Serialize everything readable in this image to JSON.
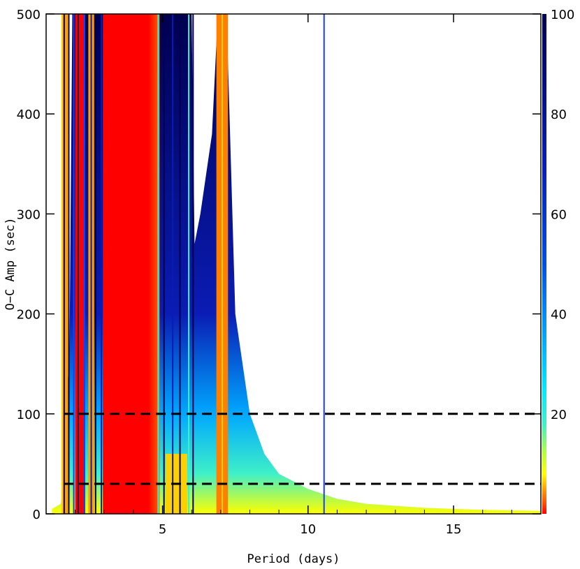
{
  "chart_data": {
    "type": "heatmap",
    "title": "",
    "xlabel": "Period (days)",
    "ylabel": "O−C Amp (sec)",
    "xlim": [
      1,
      18
    ],
    "ylim": [
      0,
      500
    ],
    "xticks": [
      5,
      10,
      15
    ],
    "yticks": [
      0,
      100,
      200,
      300,
      400,
      500
    ],
    "colorbar": {
      "range": [
        0,
        100
      ],
      "ticks": [
        20,
        40,
        60,
        80,
        100
      ],
      "stops": [
        {
          "v": 0,
          "color": "#ff0000"
        },
        {
          "v": 2,
          "color": "#ff4a00"
        },
        {
          "v": 5,
          "color": "#ffa000"
        },
        {
          "v": 8,
          "color": "#ffff00"
        },
        {
          "v": 12,
          "color": "#b8ff3a"
        },
        {
          "v": 18,
          "color": "#3ff0c8"
        },
        {
          "v": 25,
          "color": "#00e8ff"
        },
        {
          "v": 35,
          "color": "#00a8ff"
        },
        {
          "v": 50,
          "color": "#0050e0"
        },
        {
          "v": 70,
          "color": "#0a1cb4"
        },
        {
          "v": 100,
          "color": "#000050"
        }
      ]
    },
    "reference_lines": [
      {
        "y": 100,
        "style": "dashed"
      },
      {
        "y": 30,
        "style": "dashed"
      }
    ],
    "detection_limit_curve": [
      [
        1.2,
        5
      ],
      [
        1.5,
        10
      ],
      [
        1.6,
        30
      ],
      [
        1.65,
        110
      ],
      [
        1.8,
        150
      ],
      [
        1.9,
        500
      ],
      [
        6.0,
        500
      ],
      [
        6.1,
        270
      ],
      [
        6.3,
        300
      ],
      [
        6.7,
        380
      ],
      [
        6.9,
        500
      ],
      [
        7.2,
        500
      ],
      [
        7.5,
        200
      ],
      [
        8.0,
        100
      ],
      [
        8.5,
        60
      ],
      [
        9.0,
        40
      ],
      [
        10,
        25
      ],
      [
        11,
        15
      ],
      [
        12,
        10
      ],
      [
        14,
        6
      ],
      [
        16,
        4
      ],
      [
        18,
        3
      ]
    ],
    "notch_lines": [
      {
        "x": 1.55,
        "color": "#ffd000"
      },
      {
        "x": 1.62,
        "color": "#000050"
      },
      {
        "x": 1.78,
        "color": "#000050"
      },
      {
        "x": 1.95,
        "color": "#1a3cff"
      },
      {
        "x": 2.1,
        "color": "#000050"
      },
      {
        "x": 2.32,
        "color": "#1a3cff"
      },
      {
        "x": 2.55,
        "color": "#0a1cb4"
      },
      {
        "x": 2.7,
        "color": "#000050"
      },
      {
        "x": 2.9,
        "color": "#0a1cb4"
      },
      {
        "x": 4.85,
        "color": "#3ff0c8"
      },
      {
        "x": 5.05,
        "color": "#000050"
      },
      {
        "x": 5.35,
        "color": "#0a1cb4"
      },
      {
        "x": 5.6,
        "color": "#000050"
      },
      {
        "x": 5.9,
        "color": "#3ff0c8"
      },
      {
        "x": 6.05,
        "color": "#000050"
      },
      {
        "x": 7.05,
        "color": "#ffd000"
      },
      {
        "x": 10.55,
        "color": "#1a3cff"
      }
    ]
  }
}
